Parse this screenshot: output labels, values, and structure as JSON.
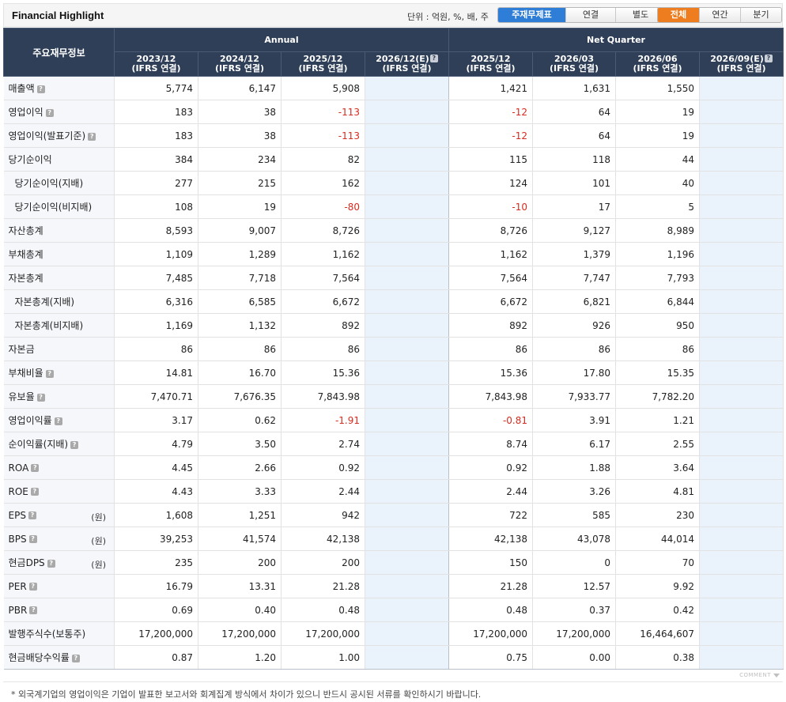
{
  "header": {
    "title": "Financial Highlight",
    "unit_text": "단위 : 억원, %, 배, 주",
    "statement_buttons": [
      {
        "label": "주재무제표",
        "active": true
      },
      {
        "label": "연결",
        "active": false
      },
      {
        "label": "별도",
        "active": false
      }
    ],
    "period_buttons": [
      {
        "label": "전체",
        "active": true
      },
      {
        "label": "연간",
        "active": false
      },
      {
        "label": "분기",
        "active": false
      }
    ],
    "accent_blue": "#2e7dd6",
    "accent_orange": "#ee7d1f"
  },
  "table": {
    "corner_label": "주요재무정보",
    "group_annual": "Annual",
    "group_quarter": "Net Quarter",
    "columns": [
      {
        "period": "2023/12",
        "basis": "(IFRS 연결)",
        "estimate": false
      },
      {
        "period": "2024/12",
        "basis": "(IFRS 연결)",
        "estimate": false
      },
      {
        "period": "2025/12",
        "basis": "(IFRS 연결)",
        "estimate": false
      },
      {
        "period": "2026/12(E)",
        "basis": "(IFRS 연결)",
        "estimate": true
      },
      {
        "period": "2025/12",
        "basis": "(IFRS 연결)",
        "estimate": false
      },
      {
        "period": "2026/03",
        "basis": "(IFRS 연결)",
        "estimate": false
      },
      {
        "period": "2026/06",
        "basis": "(IFRS 연결)",
        "estimate": false
      },
      {
        "period": "2026/09(E)",
        "basis": "(IFRS 연결)",
        "estimate": true
      }
    ],
    "rows": [
      {
        "label": "매출액",
        "help": true,
        "indent": false,
        "unit": "",
        "values": [
          "5,774",
          "6,147",
          "5,908",
          "",
          "1,421",
          "1,631",
          "1,550",
          ""
        ]
      },
      {
        "label": "영업이익",
        "help": true,
        "indent": false,
        "unit": "",
        "values": [
          "183",
          "38",
          "-113",
          "",
          "-12",
          "64",
          "19",
          ""
        ]
      },
      {
        "label": "영업이익(발표기준)",
        "help": true,
        "indent": false,
        "unit": "",
        "values": [
          "183",
          "38",
          "-113",
          "",
          "-12",
          "64",
          "19",
          ""
        ]
      },
      {
        "label": "당기순이익",
        "help": false,
        "indent": false,
        "unit": "",
        "values": [
          "384",
          "234",
          "82",
          "",
          "115",
          "118",
          "44",
          ""
        ]
      },
      {
        "label": "당기순이익(지배)",
        "help": false,
        "indent": true,
        "unit": "",
        "values": [
          "277",
          "215",
          "162",
          "",
          "124",
          "101",
          "40",
          ""
        ]
      },
      {
        "label": "당기순이익(비지배)",
        "help": false,
        "indent": true,
        "unit": "",
        "values": [
          "108",
          "19",
          "-80",
          "",
          "-10",
          "17",
          "5",
          ""
        ]
      },
      {
        "label": "자산총계",
        "help": false,
        "indent": false,
        "unit": "",
        "values": [
          "8,593",
          "9,007",
          "8,726",
          "",
          "8,726",
          "9,127",
          "8,989",
          ""
        ]
      },
      {
        "label": "부채총계",
        "help": false,
        "indent": false,
        "unit": "",
        "values": [
          "1,109",
          "1,289",
          "1,162",
          "",
          "1,162",
          "1,379",
          "1,196",
          ""
        ]
      },
      {
        "label": "자본총계",
        "help": false,
        "indent": false,
        "unit": "",
        "values": [
          "7,485",
          "7,718",
          "7,564",
          "",
          "7,564",
          "7,747",
          "7,793",
          ""
        ]
      },
      {
        "label": "자본총계(지배)",
        "help": false,
        "indent": true,
        "unit": "",
        "values": [
          "6,316",
          "6,585",
          "6,672",
          "",
          "6,672",
          "6,821",
          "6,844",
          ""
        ]
      },
      {
        "label": "자본총계(비지배)",
        "help": false,
        "indent": true,
        "unit": "",
        "values": [
          "1,169",
          "1,132",
          "892",
          "",
          "892",
          "926",
          "950",
          ""
        ]
      },
      {
        "label": "자본금",
        "help": false,
        "indent": false,
        "unit": "",
        "values": [
          "86",
          "86",
          "86",
          "",
          "86",
          "86",
          "86",
          ""
        ]
      },
      {
        "label": "부채비율",
        "help": true,
        "indent": false,
        "unit": "",
        "values": [
          "14.81",
          "16.70",
          "15.36",
          "",
          "15.36",
          "17.80",
          "15.35",
          ""
        ]
      },
      {
        "label": "유보율",
        "help": true,
        "indent": false,
        "unit": "",
        "values": [
          "7,470.71",
          "7,676.35",
          "7,843.98",
          "",
          "7,843.98",
          "7,933.77",
          "7,782.20",
          ""
        ]
      },
      {
        "label": "영업이익률",
        "help": true,
        "indent": false,
        "unit": "",
        "values": [
          "3.17",
          "0.62",
          "-1.91",
          "",
          "-0.81",
          "3.91",
          "1.21",
          ""
        ]
      },
      {
        "label": "순이익률(지배)",
        "help": true,
        "indent": false,
        "unit": "",
        "values": [
          "4.79",
          "3.50",
          "2.74",
          "",
          "8.74",
          "6.17",
          "2.55",
          ""
        ]
      },
      {
        "label": "ROA",
        "help": true,
        "indent": false,
        "unit": "",
        "values": [
          "4.45",
          "2.66",
          "0.92",
          "",
          "0.92",
          "1.88",
          "3.64",
          ""
        ]
      },
      {
        "label": "ROE",
        "help": true,
        "indent": false,
        "unit": "",
        "values": [
          "4.43",
          "3.33",
          "2.44",
          "",
          "2.44",
          "3.26",
          "4.81",
          ""
        ]
      },
      {
        "label": "EPS",
        "help": true,
        "indent": false,
        "unit": "(원)",
        "values": [
          "1,608",
          "1,251",
          "942",
          "",
          "722",
          "585",
          "230",
          ""
        ]
      },
      {
        "label": "BPS",
        "help": true,
        "indent": false,
        "unit": "(원)",
        "values": [
          "39,253",
          "41,574",
          "42,138",
          "",
          "42,138",
          "43,078",
          "44,014",
          ""
        ]
      },
      {
        "label": "현금DPS",
        "help": true,
        "indent": false,
        "unit": "(원)",
        "values": [
          "235",
          "200",
          "200",
          "",
          "150",
          "0",
          "70",
          ""
        ]
      },
      {
        "label": "PER",
        "help": true,
        "indent": false,
        "unit": "",
        "values": [
          "16.79",
          "13.31",
          "21.28",
          "",
          "21.28",
          "12.57",
          "9.92",
          ""
        ]
      },
      {
        "label": "PBR",
        "help": true,
        "indent": false,
        "unit": "",
        "values": [
          "0.69",
          "0.40",
          "0.48",
          "",
          "0.48",
          "0.37",
          "0.42",
          ""
        ]
      },
      {
        "label": "발행주식수(보통주)",
        "help": false,
        "indent": false,
        "unit": "",
        "values": [
          "17,200,000",
          "17,200,000",
          "17,200,000",
          "",
          "17,200,000",
          "17,200,000",
          "16,464,607",
          ""
        ]
      },
      {
        "label": "현금배당수익률",
        "help": true,
        "indent": false,
        "unit": "",
        "values": [
          "0.87",
          "1.20",
          "1.00",
          "",
          "0.75",
          "0.00",
          "0.38",
          ""
        ]
      }
    ]
  },
  "footer": {
    "comment_label": "COMMENT",
    "note": "* 외국계기업의 영업이익은 기업이 발표한 보고서와 회계집계 방식에서 차이가 있으니 반드시 공시된 서류를 확인하시기 바랍니다."
  }
}
